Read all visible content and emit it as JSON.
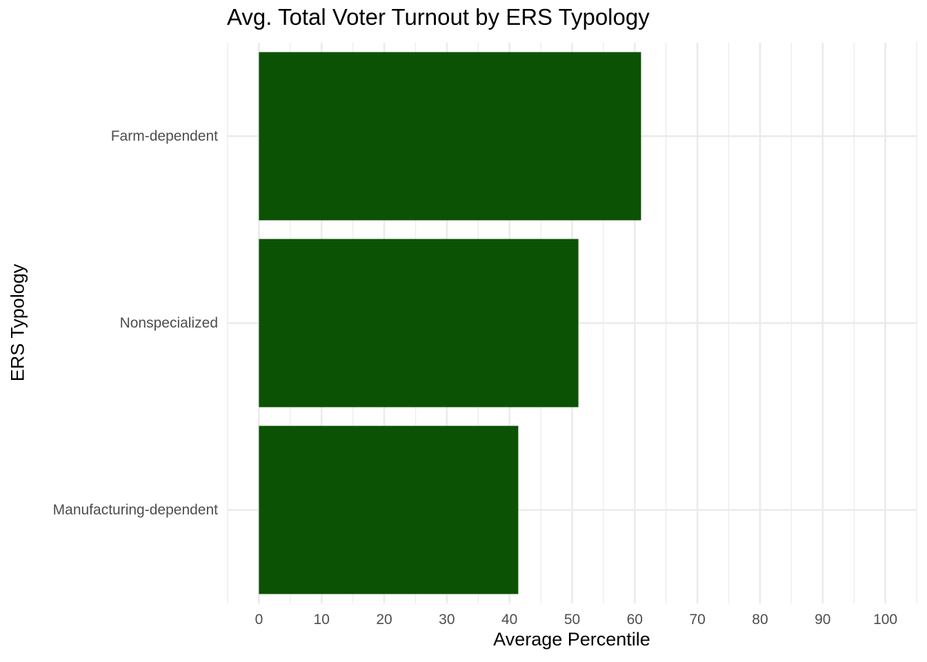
{
  "chart_data": {
    "type": "bar",
    "orientation": "horizontal",
    "title": "Avg. Total Voter Turnout by ERS Typology",
    "xlabel": "Average Percentile",
    "ylabel": "ERS Typology",
    "categories": [
      "Farm-dependent",
      "Nonspecialized",
      "Manufacturing-dependent"
    ],
    "values": [
      61.0,
      51.0,
      41.4
    ],
    "xlim": [
      -5,
      105
    ],
    "xticks": [
      0,
      10,
      20,
      30,
      40,
      50,
      60,
      70,
      80,
      90,
      100
    ],
    "grid": true,
    "legend": "none",
    "colors": {
      "bar": "#0c5204",
      "grid": "#ebebeb",
      "tick_label": "#4d4d4d"
    }
  }
}
